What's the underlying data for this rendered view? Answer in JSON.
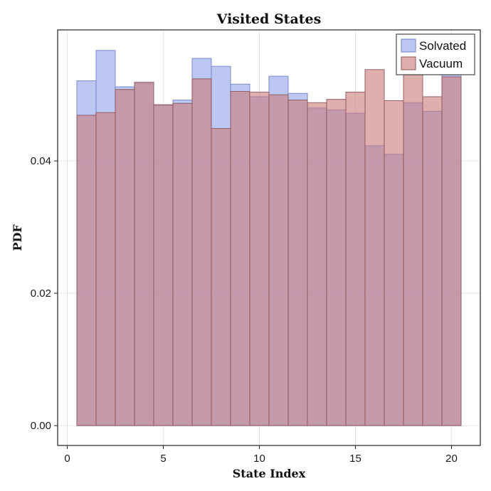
{
  "chart_data": {
    "type": "bar",
    "title": "Visited States",
    "xlabel": "State Index",
    "ylabel": "PDF",
    "xlim": [
      -0.5,
      21.5
    ],
    "ylim": [
      -0.003,
      0.0598
    ],
    "xticks": [
      0,
      5,
      10,
      15,
      20
    ],
    "xtick_labels": [
      "0",
      "5",
      "10",
      "15",
      "20"
    ],
    "yticks": [
      0.0,
      0.02,
      0.04
    ],
    "ytick_labels": [
      "0.00",
      "0.02",
      "0.04"
    ],
    "grid": true,
    "legend_position": "top-right",
    "categories": [
      1,
      2,
      3,
      4,
      5,
      6,
      7,
      8,
      9,
      10,
      11,
      12,
      13,
      14,
      15,
      16,
      17,
      18,
      19,
      20
    ],
    "series": [
      {
        "name": "Solvated",
        "color": "#8fa4e8",
        "values": [
          0.0521,
          0.0567,
          0.0512,
          0.0517,
          0.0484,
          0.0492,
          0.0555,
          0.0543,
          0.0516,
          0.0497,
          0.0528,
          0.0502,
          0.048,
          0.0477,
          0.0472,
          0.0423,
          0.041,
          0.0488,
          0.0475,
          0.0532
        ]
      },
      {
        "name": "Vacuum",
        "color": "#c97a7c",
        "values": [
          0.0469,
          0.0473,
          0.0508,
          0.0519,
          0.0485,
          0.0487,
          0.0524,
          0.0449,
          0.0505,
          0.0504,
          0.05,
          0.0492,
          0.0488,
          0.0493,
          0.0504,
          0.0538,
          0.0491,
          0.0536,
          0.0497,
          0.0527
        ]
      }
    ]
  }
}
